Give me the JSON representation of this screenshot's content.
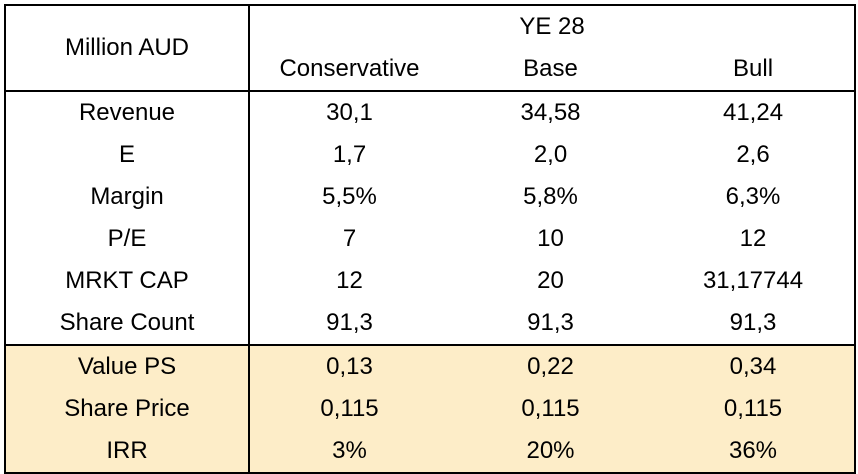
{
  "table": {
    "corner_label": "Million AUD",
    "group_header": "YE 28",
    "scenarios": [
      "Conservative",
      "Base",
      "Bull"
    ],
    "rows": [
      {
        "label": "Revenue",
        "values": [
          "30,1",
          "34,58",
          "41,24"
        ]
      },
      {
        "label": "E",
        "values": [
          "1,7",
          "2,0",
          "2,6"
        ]
      },
      {
        "label": "Margin",
        "values": [
          "5,5%",
          "5,8%",
          "6,3%"
        ]
      },
      {
        "label": "P/E",
        "values": [
          "7",
          "10",
          "12"
        ]
      },
      {
        "label": "MRKT CAP",
        "values": [
          "12",
          "20",
          "31,17744"
        ]
      },
      {
        "label": "Share Count",
        "values": [
          "91,3",
          "91,3",
          "91,3"
        ]
      },
      {
        "label": "Value PS",
        "values": [
          "0,13",
          "0,22",
          "0,34"
        ]
      },
      {
        "label": "Share Price",
        "values": [
          "0,115",
          "0,115",
          "0,115"
        ]
      },
      {
        "label": "IRR",
        "values": [
          "3%",
          "20%",
          "36%"
        ]
      }
    ],
    "highlight_color": "#fdedc8"
  }
}
